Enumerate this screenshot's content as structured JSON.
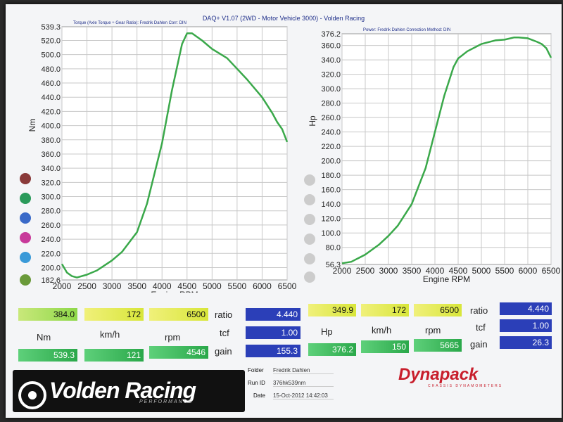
{
  "header": {
    "title": "DAQ+ V1.07 (2WD - Motor Vehicle 3000) - Volden Racing",
    "left_sub": "Torque (Axle Torque ÷ Gear Ratio): Fredrik Dahlen     Corr: DIN",
    "right_sub": "Power: Fredrik Dahlen      Correction Method: DIN"
  },
  "chart_data": [
    {
      "type": "line",
      "xlabel": "Engine RPM",
      "ylabel": "Nm",
      "xlim": [
        2000,
        6500
      ],
      "ylim": [
        182.6,
        539.3
      ],
      "xticks": [
        2000,
        2500,
        3000,
        3500,
        4000,
        4500,
        5000,
        5500,
        6000,
        6500
      ],
      "yticks": [
        "539.3",
        "520.0",
        "500.0",
        "480.0",
        "460.0",
        "440.0",
        "420.0",
        "400.0",
        "380.0",
        "360.0",
        "340.0",
        "320.0",
        "300.0",
        "280.0",
        "260.0",
        "240.0",
        "220.0",
        "200.0",
        "182.6"
      ],
      "grid": true,
      "color": "#3aa84a",
      "x": [
        2000,
        2100,
        2200,
        2300,
        2500,
        2700,
        3000,
        3200,
        3500,
        3700,
        4000,
        4200,
        4400,
        4500,
        4600,
        4800,
        5000,
        5300,
        5500,
        5700,
        6000,
        6200,
        6300,
        6400,
        6500
      ],
      "y": [
        205,
        193,
        188,
        186,
        190,
        196,
        210,
        222,
        250,
        290,
        375,
        450,
        515,
        530,
        530,
        520,
        508,
        495,
        480,
        465,
        440,
        418,
        405,
        395,
        377
      ]
    },
    {
      "type": "line",
      "xlabel": "Engine RPM",
      "ylabel": "Hp",
      "xlim": [
        2000,
        6500
      ],
      "ylim": [
        56.3,
        376.2
      ],
      "xticks": [
        2000,
        2500,
        3000,
        3500,
        4000,
        4500,
        5000,
        5500,
        6000,
        6500
      ],
      "yticks": [
        "376.2",
        "360.0",
        "340.0",
        "320.0",
        "300.0",
        "280.0",
        "260.0",
        "240.0",
        "220.0",
        "200.0",
        "180.0",
        "160.0",
        "140.0",
        "120.0",
        "100.0",
        "80.0",
        "56.3"
      ],
      "grid": true,
      "color": "#3aa84a",
      "x": [
        2000,
        2200,
        2500,
        2800,
        3000,
        3200,
        3500,
        3800,
        4000,
        4200,
        4400,
        4500,
        4700,
        5000,
        5300,
        5500,
        5700,
        5800,
        6000,
        6200,
        6300,
        6400,
        6500
      ],
      "y": [
        58,
        60,
        70,
        84,
        96,
        110,
        140,
        190,
        240,
        290,
        330,
        342,
        352,
        362,
        367,
        368,
        371,
        371,
        370,
        365,
        362,
        356,
        343
      ]
    }
  ],
  "left_panel": {
    "cursor_nm": "384.0",
    "cursor_kmh": "172",
    "cursor_rpm": "6500",
    "ratio_label": "ratio",
    "ratio": "4.440",
    "unit_nm": "Nm",
    "unit_kmh": "km/h",
    "unit_rpm": "rpm",
    "tcf_label": "tcf",
    "tcf": "1.00",
    "peak_nm": "539.3",
    "peak_kmh": "121",
    "peak_rpm": "4546",
    "gain_label": "gain",
    "gain": "155.3"
  },
  "right_panel": {
    "cursor_hp": "349.9",
    "cursor_kmh": "172",
    "cursor_rpm": "6500",
    "ratio_label": "ratio",
    "ratio": "4.440",
    "unit_hp": "Hp",
    "unit_kmh": "km/h",
    "unit_rpm": "rpm",
    "tcf_label": "tcf",
    "tcf": "1.00",
    "peak_hp": "376.2",
    "peak_kmh": "150",
    "peak_rpm": "5665",
    "gain_label": "gain",
    "gain": "26.3"
  },
  "footer": {
    "brand": "Volden Racing",
    "brand_sub": "PERFORMANCE",
    "folder_label": "Folder",
    "folder": "Fredrik Dahlen",
    "runid_label": "Run ID",
    "runid": "376hk539nm",
    "date_label": "Date",
    "date": "15-Oct-2012 14:42:03",
    "dyna": "Dynapack",
    "dyna_sub": "CHASSIS DYNAMOMETERS"
  }
}
